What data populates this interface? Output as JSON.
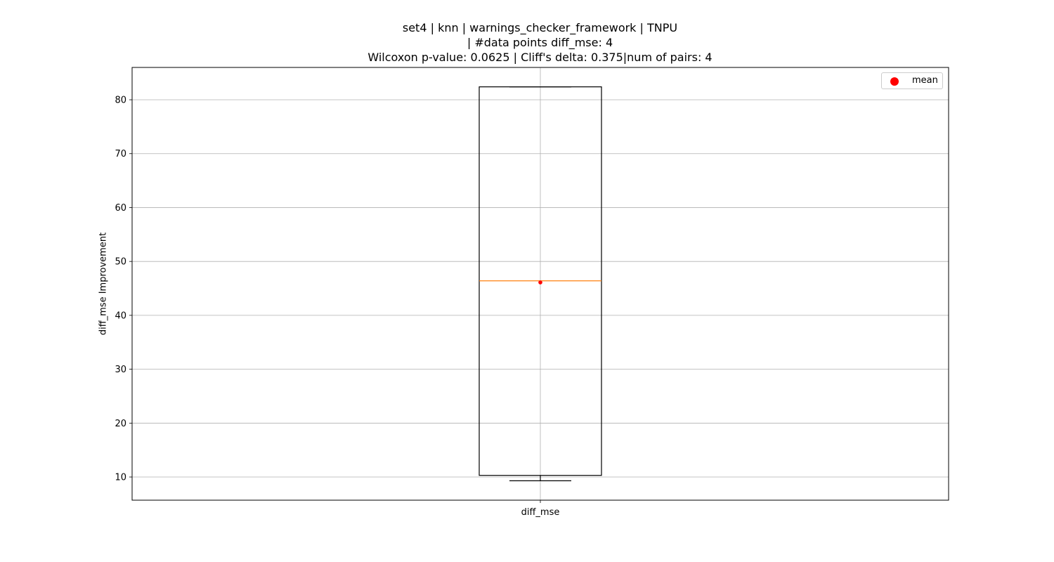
{
  "chart_data": {
    "type": "box",
    "title_lines": [
      "set4 | knn | warnings_checker_framework | TNPU",
      "| #data points diff_mse: 4",
      "Wilcoxon p-value: 0.0625 | Cliff's delta: 0.375|num of pairs: 4"
    ],
    "xlabel": "",
    "ylabel": "diff_mse Improvement",
    "categories": [
      "diff_mse"
    ],
    "ylim": [
      5.7,
      86.0
    ],
    "yticks": [
      10,
      20,
      30,
      40,
      50,
      60,
      70,
      80
    ],
    "grid": true,
    "legend": {
      "position": "upper-right",
      "entries": [
        {
          "label": "mean",
          "color": "#ff0000",
          "marker": "circle"
        }
      ]
    },
    "boxes": [
      {
        "category": "diff_mse",
        "whisker_low": 9.3,
        "q1": 10.3,
        "median": 46.4,
        "q3": 82.4,
        "whisker_high": 82.4,
        "mean": 46.1
      }
    ],
    "colors": {
      "box": "#000000",
      "median": "#ff7f0e",
      "mean": "#ff0000",
      "grid": "#b0b0b0"
    }
  }
}
